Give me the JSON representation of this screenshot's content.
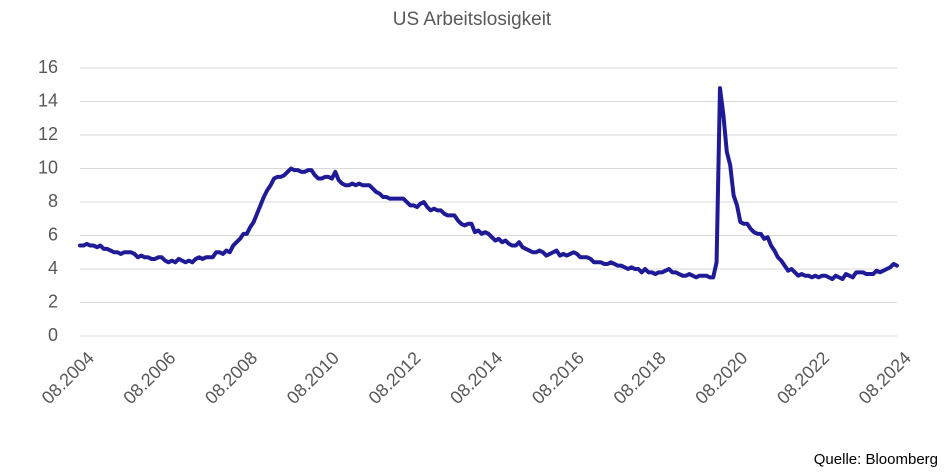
{
  "chart_data": {
    "type": "line",
    "title": "US Arbeitslosigkeit",
    "source": "Quelle: Bloomberg",
    "color": "#1f1a96",
    "x": [
      "08.2004",
      "09.2004",
      "10.2004",
      "11.2004",
      "12.2004",
      "01.2005",
      "02.2005",
      "03.2005",
      "04.2005",
      "05.2005",
      "06.2005",
      "07.2005",
      "08.2005",
      "09.2005",
      "10.2005",
      "11.2005",
      "12.2005",
      "01.2006",
      "02.2006",
      "03.2006",
      "04.2006",
      "05.2006",
      "06.2006",
      "07.2006",
      "08.2006",
      "09.2006",
      "10.2006",
      "11.2006",
      "12.2006",
      "01.2007",
      "02.2007",
      "03.2007",
      "04.2007",
      "05.2007",
      "06.2007",
      "07.2007",
      "08.2007",
      "09.2007",
      "10.2007",
      "11.2007",
      "12.2007",
      "01.2008",
      "02.2008",
      "03.2008",
      "04.2008",
      "05.2008",
      "06.2008",
      "07.2008",
      "08.2008",
      "09.2008",
      "10.2008",
      "11.2008",
      "12.2008",
      "01.2009",
      "02.2009",
      "03.2009",
      "04.2009",
      "05.2009",
      "06.2009",
      "07.2009",
      "08.2009",
      "09.2009",
      "10.2009",
      "11.2009",
      "12.2009",
      "01.2010",
      "02.2010",
      "03.2010",
      "04.2010",
      "05.2010",
      "06.2010",
      "07.2010",
      "08.2010",
      "09.2010",
      "10.2010",
      "11.2010",
      "12.2010",
      "01.2011",
      "02.2011",
      "03.2011",
      "04.2011",
      "05.2011",
      "06.2011",
      "07.2011",
      "08.2011",
      "09.2011",
      "10.2011",
      "11.2011",
      "12.2011",
      "01.2012",
      "02.2012",
      "03.2012",
      "04.2012",
      "05.2012",
      "06.2012",
      "07.2012",
      "08.2012",
      "09.2012",
      "10.2012",
      "11.2012",
      "12.2012",
      "01.2013",
      "02.2013",
      "03.2013",
      "04.2013",
      "05.2013",
      "06.2013",
      "07.2013",
      "08.2013",
      "09.2013",
      "10.2013",
      "11.2013",
      "12.2013",
      "01.2014",
      "02.2014",
      "03.2014",
      "04.2014",
      "05.2014",
      "06.2014",
      "07.2014",
      "08.2014",
      "09.2014",
      "10.2014",
      "11.2014",
      "12.2014",
      "01.2015",
      "02.2015",
      "03.2015",
      "04.2015",
      "05.2015",
      "06.2015",
      "07.2015",
      "08.2015",
      "09.2015",
      "10.2015",
      "11.2015",
      "12.2015",
      "01.2016",
      "02.2016",
      "03.2016",
      "04.2016",
      "05.2016",
      "06.2016",
      "07.2016",
      "08.2016",
      "09.2016",
      "10.2016",
      "11.2016",
      "12.2016",
      "01.2017",
      "02.2017",
      "03.2017",
      "04.2017",
      "05.2017",
      "06.2017",
      "07.2017",
      "08.2017",
      "09.2017",
      "10.2017",
      "11.2017",
      "12.2017",
      "01.2018",
      "02.2018",
      "03.2018",
      "04.2018",
      "05.2018",
      "06.2018",
      "07.2018",
      "08.2018",
      "09.2018",
      "10.2018",
      "11.2018",
      "12.2018",
      "01.2019",
      "02.2019",
      "03.2019",
      "04.2019",
      "05.2019",
      "06.2019",
      "07.2019",
      "08.2019",
      "09.2019",
      "10.2019",
      "11.2019",
      "12.2019",
      "01.2020",
      "02.2020",
      "03.2020",
      "04.2020",
      "05.2020",
      "06.2020",
      "07.2020",
      "08.2020",
      "09.2020",
      "10.2020",
      "11.2020",
      "12.2020",
      "01.2021",
      "02.2021",
      "03.2021",
      "04.2021",
      "05.2021",
      "06.2021",
      "07.2021",
      "08.2021",
      "09.2021",
      "10.2021",
      "11.2021",
      "12.2021",
      "01.2022",
      "02.2022",
      "03.2022",
      "04.2022",
      "05.2022",
      "06.2022",
      "07.2022",
      "08.2022",
      "09.2022",
      "10.2022",
      "11.2022",
      "12.2022",
      "01.2023",
      "02.2023",
      "03.2023",
      "04.2023",
      "05.2023",
      "06.2023",
      "07.2023",
      "08.2023",
      "09.2023",
      "10.2023",
      "11.2023",
      "12.2023",
      "01.2024",
      "02.2024",
      "03.2024",
      "04.2024",
      "05.2024",
      "06.2024",
      "07.2024",
      "08.2024"
    ],
    "values": [
      5.4,
      5.4,
      5.5,
      5.4,
      5.4,
      5.3,
      5.4,
      5.2,
      5.2,
      5.1,
      5.0,
      5.0,
      4.9,
      5.0,
      5.0,
      5.0,
      4.9,
      4.7,
      4.8,
      4.7,
      4.7,
      4.6,
      4.6,
      4.7,
      4.7,
      4.5,
      4.4,
      4.5,
      4.4,
      4.6,
      4.5,
      4.4,
      4.5,
      4.4,
      4.6,
      4.7,
      4.6,
      4.7,
      4.7,
      4.7,
      5.0,
      5.0,
      4.9,
      5.1,
      5.0,
      5.4,
      5.6,
      5.8,
      6.1,
      6.1,
      6.5,
      6.8,
      7.3,
      7.8,
      8.3,
      8.7,
      9.0,
      9.4,
      9.5,
      9.5,
      9.6,
      9.8,
      10.0,
      9.9,
      9.9,
      9.8,
      9.8,
      9.9,
      9.9,
      9.6,
      9.4,
      9.4,
      9.5,
      9.5,
      9.4,
      9.8,
      9.3,
      9.1,
      9.0,
      9.0,
      9.1,
      9.0,
      9.1,
      9.0,
      9.0,
      9.0,
      8.8,
      8.6,
      8.5,
      8.3,
      8.3,
      8.2,
      8.2,
      8.2,
      8.2,
      8.2,
      8.0,
      7.8,
      7.8,
      7.7,
      7.9,
      8.0,
      7.7,
      7.5,
      7.6,
      7.5,
      7.5,
      7.3,
      7.2,
      7.2,
      7.2,
      6.9,
      6.7,
      6.6,
      6.7,
      6.7,
      6.2,
      6.3,
      6.1,
      6.2,
      6.1,
      5.9,
      5.7,
      5.8,
      5.6,
      5.7,
      5.5,
      5.4,
      5.4,
      5.6,
      5.3,
      5.2,
      5.1,
      5.0,
      5.0,
      5.1,
      5.0,
      4.8,
      4.9,
      5.0,
      5.1,
      4.8,
      4.9,
      4.8,
      4.9,
      5.0,
      4.9,
      4.7,
      4.7,
      4.7,
      4.6,
      4.4,
      4.4,
      4.4,
      4.3,
      4.3,
      4.4,
      4.3,
      4.2,
      4.2,
      4.1,
      4.0,
      4.1,
      4.0,
      4.0,
      3.8,
      4.0,
      3.8,
      3.8,
      3.7,
      3.8,
      3.8,
      3.9,
      4.0,
      3.8,
      3.8,
      3.7,
      3.6,
      3.6,
      3.7,
      3.6,
      3.5,
      3.6,
      3.6,
      3.6,
      3.5,
      3.5,
      4.4,
      14.8,
      13.2,
      11.0,
      10.2,
      8.4,
      7.8,
      6.8,
      6.7,
      6.7,
      6.4,
      6.2,
      6.1,
      6.1,
      5.8,
      5.9,
      5.4,
      5.1,
      4.7,
      4.5,
      4.2,
      3.9,
      4.0,
      3.8,
      3.6,
      3.7,
      3.6,
      3.6,
      3.5,
      3.6,
      3.5,
      3.6,
      3.6,
      3.5,
      3.4,
      3.6,
      3.5,
      3.4,
      3.7,
      3.6,
      3.5,
      3.8,
      3.8,
      3.8,
      3.7,
      3.7,
      3.7,
      3.9,
      3.8,
      3.9,
      4.0,
      4.1,
      4.3,
      4.2
    ],
    "xticks": [
      "08.2004",
      "08.2006",
      "08.2008",
      "08.2010",
      "08.2012",
      "08.2014",
      "08.2016",
      "08.2018",
      "08.2020",
      "08.2022",
      "08.2024"
    ],
    "ylim": [
      0,
      16
    ],
    "yticks": [
      0,
      2,
      4,
      6,
      8,
      10,
      12,
      14,
      16
    ],
    "grid": true
  }
}
